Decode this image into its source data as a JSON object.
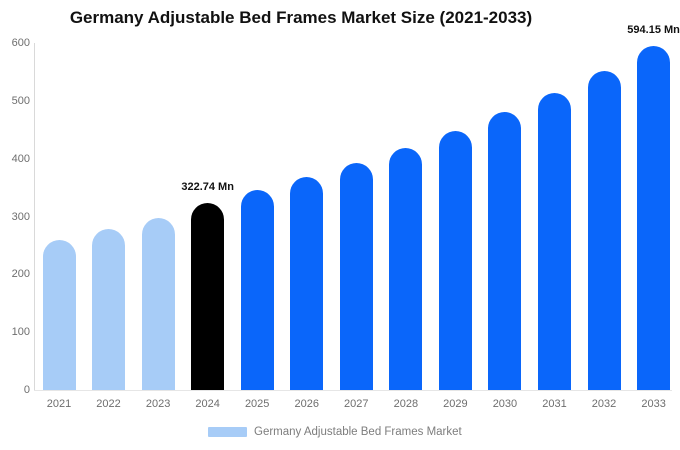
{
  "chart_data": {
    "type": "bar",
    "title": "Germany Adjustable Bed Frames Market Size (2021-2033)",
    "categories": [
      "2021",
      "2022",
      "2023",
      "2024",
      "2025",
      "2026",
      "2027",
      "2028",
      "2029",
      "2030",
      "2031",
      "2032",
      "2033"
    ],
    "series": [
      {
        "name": "Germany Adjustable Bed Frames Market",
        "values": [
          260,
          278,
          298,
          322.74,
          345,
          368,
          393,
          418,
          448,
          481,
          514,
          552,
          594.15
        ]
      }
    ],
    "point_labels": [
      "",
      "",
      "",
      "322.74 Mn",
      "",
      "",
      "",
      "",
      "",
      "",
      "",
      "",
      "594.15 Mn"
    ],
    "point_colors": [
      "#a7ccf7",
      "#a7ccf7",
      "#a7ccf7",
      "#000000",
      "#0a66fa",
      "#0a66fa",
      "#0a66fa",
      "#0a66fa",
      "#0a66fa",
      "#0a66fa",
      "#0a66fa",
      "#0a66fa",
      "#0a66fa"
    ],
    "xlabel": "",
    "ylabel": "",
    "ylim": [
      0,
      600
    ],
    "yticks": [
      0,
      100,
      200,
      300,
      400,
      500,
      600
    ],
    "grid": false,
    "legend": {
      "position": "bottom",
      "items": [
        {
          "label": "Germany Adjustable Bed Frames Market",
          "color": "#a7ccf7"
        }
      ]
    }
  }
}
